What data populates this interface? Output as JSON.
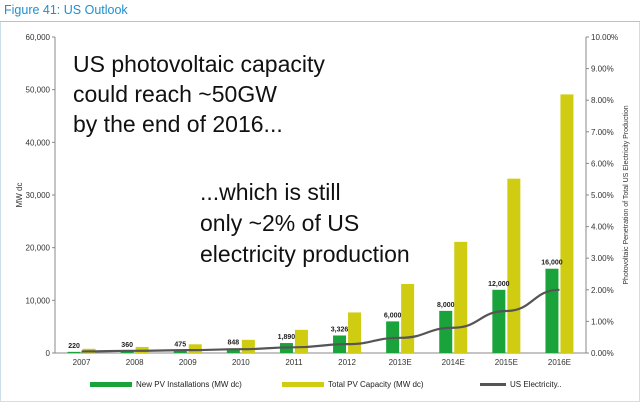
{
  "figure_title": "Figure 41: US Outlook",
  "colors": {
    "new": "#1aa33a",
    "total": "#cfcc12",
    "line": "#555555",
    "title": "#1e8fcf"
  },
  "annotations": {
    "headline": [
      "US photovoltaic capacity",
      "could reach ~50GW",
      "by the end of 2016..."
    ],
    "subline": [
      "...which is still",
      "only ~2% of US",
      "electricity production"
    ]
  },
  "chart_data": {
    "type": "bar",
    "categories": [
      "2007",
      "2008",
      "2009",
      "2010",
      "2011",
      "2012",
      "2013E",
      "2014E",
      "2015E",
      "2016E"
    ],
    "ylabel": "MW dc",
    "y2label": "Photovoltaic Penetration of Total US Electricity Production",
    "ylim": [
      0,
      60000
    ],
    "y2lim": [
      0,
      10
    ],
    "yticks": [
      "0",
      "10,000",
      "20,000",
      "30,000",
      "40,000",
      "50,000",
      "60,000"
    ],
    "y2ticks": [
      "0.00%",
      "1.00%",
      "2.00%",
      "3.00%",
      "4.00%",
      "5.00%",
      "6.00%",
      "7.00%",
      "8.00%",
      "9.00%",
      "10.00%"
    ],
    "series": [
      {
        "name": "New PV Installations (MW dc)",
        "type": "bar",
        "values": [
          220,
          360,
          475,
          848,
          1890,
          3326,
          6000,
          8000,
          12000,
          16000
        ]
      },
      {
        "name": "Total PV Capacity (MW dc)",
        "type": "bar",
        "values": [
          800,
          1150,
          1650,
          2500,
          4400,
          7700,
          13100,
          21100,
          33100,
          49100
        ]
      },
      {
        "name": "US Electricity..",
        "type": "line",
        "axis": "right",
        "values": [
          0.05,
          0.07,
          0.09,
          0.12,
          0.18,
          0.28,
          0.48,
          0.8,
          1.33,
          2.0
        ]
      }
    ],
    "data_labels": [
      "220",
      "360",
      "475",
      "848",
      "1,890",
      "3,326",
      "6,000",
      "8,000",
      "12,000",
      "16,000"
    ],
    "legend": "bottom",
    "grid": false
  }
}
